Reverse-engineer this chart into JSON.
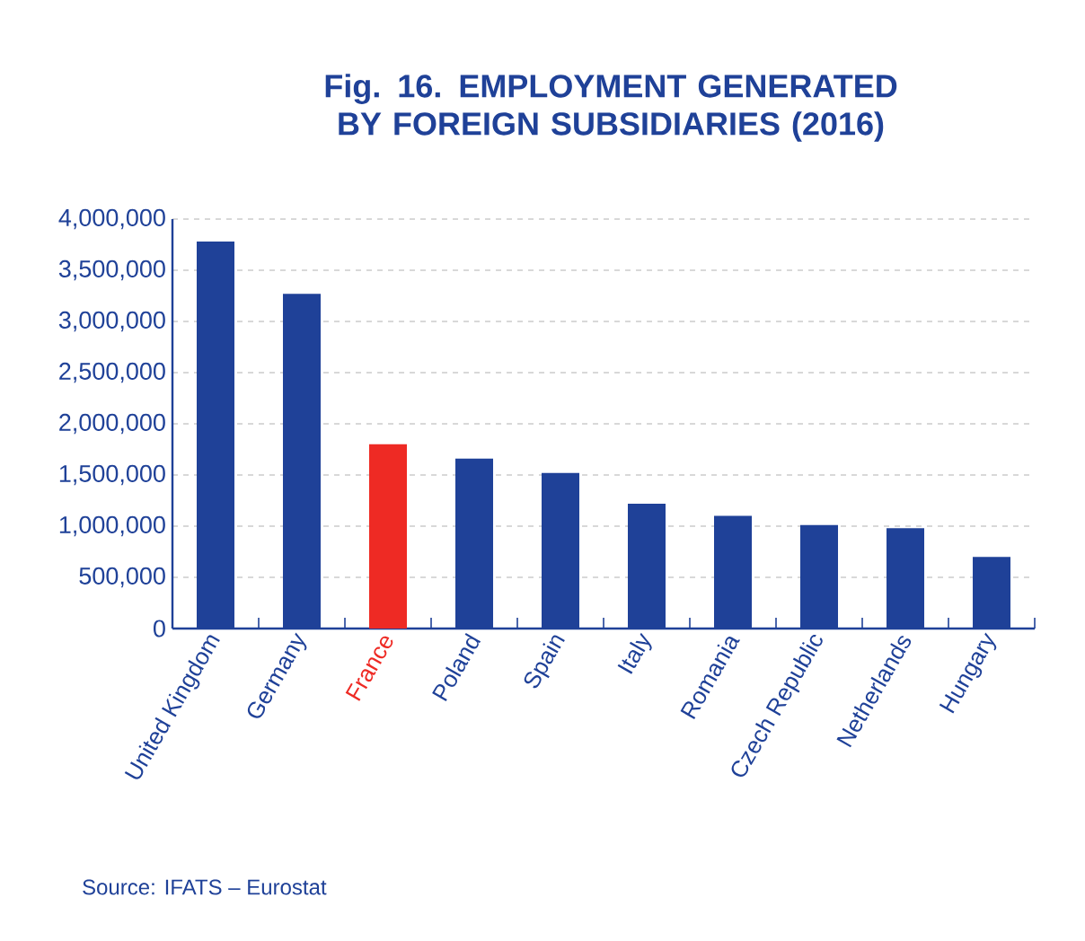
{
  "chart_data": {
    "type": "bar",
    "title": "Fig. 16. EMPLOYMENT GENERATED BY FOREIGN SUBSIDIARIES (2016)",
    "categories": [
      "United Kingdom",
      "Germany",
      "France",
      "Poland",
      "Spain",
      "Italy",
      "Romania",
      "Czech Republic",
      "Netherlands",
      "Hungary"
    ],
    "values": [
      3780000,
      3270000,
      1800000,
      1660000,
      1520000,
      1220000,
      1100000,
      1010000,
      980000,
      700000
    ],
    "colors": [
      "#1f4198",
      "#1f4198",
      "#ee2a24",
      "#1f4198",
      "#1f4198",
      "#1f4198",
      "#1f4198",
      "#1f4198",
      "#1f4198",
      "#1f4198"
    ],
    "ylim": [
      0,
      4000000
    ],
    "yticks": [
      0,
      {
        "value": 500000,
        "label": "500,000"
      },
      {
        "value": 1000000,
        "label": "1,000,000"
      },
      {
        "value": 1500000,
        "label": "1,500,000"
      },
      {
        "value": 2000000,
        "label": "2,000,000"
      },
      {
        "value": 2500000,
        "label": "2,500,000"
      },
      {
        "value": 3000000,
        "label": "3,000,000"
      },
      {
        "value": 3500000,
        "label": "3,500,000"
      },
      {
        "value": 4000000,
        "label": "4,000,000"
      }
    ],
    "grid": "y",
    "annotations": [
      "Source: IFATS – Eurostat"
    ]
  }
}
